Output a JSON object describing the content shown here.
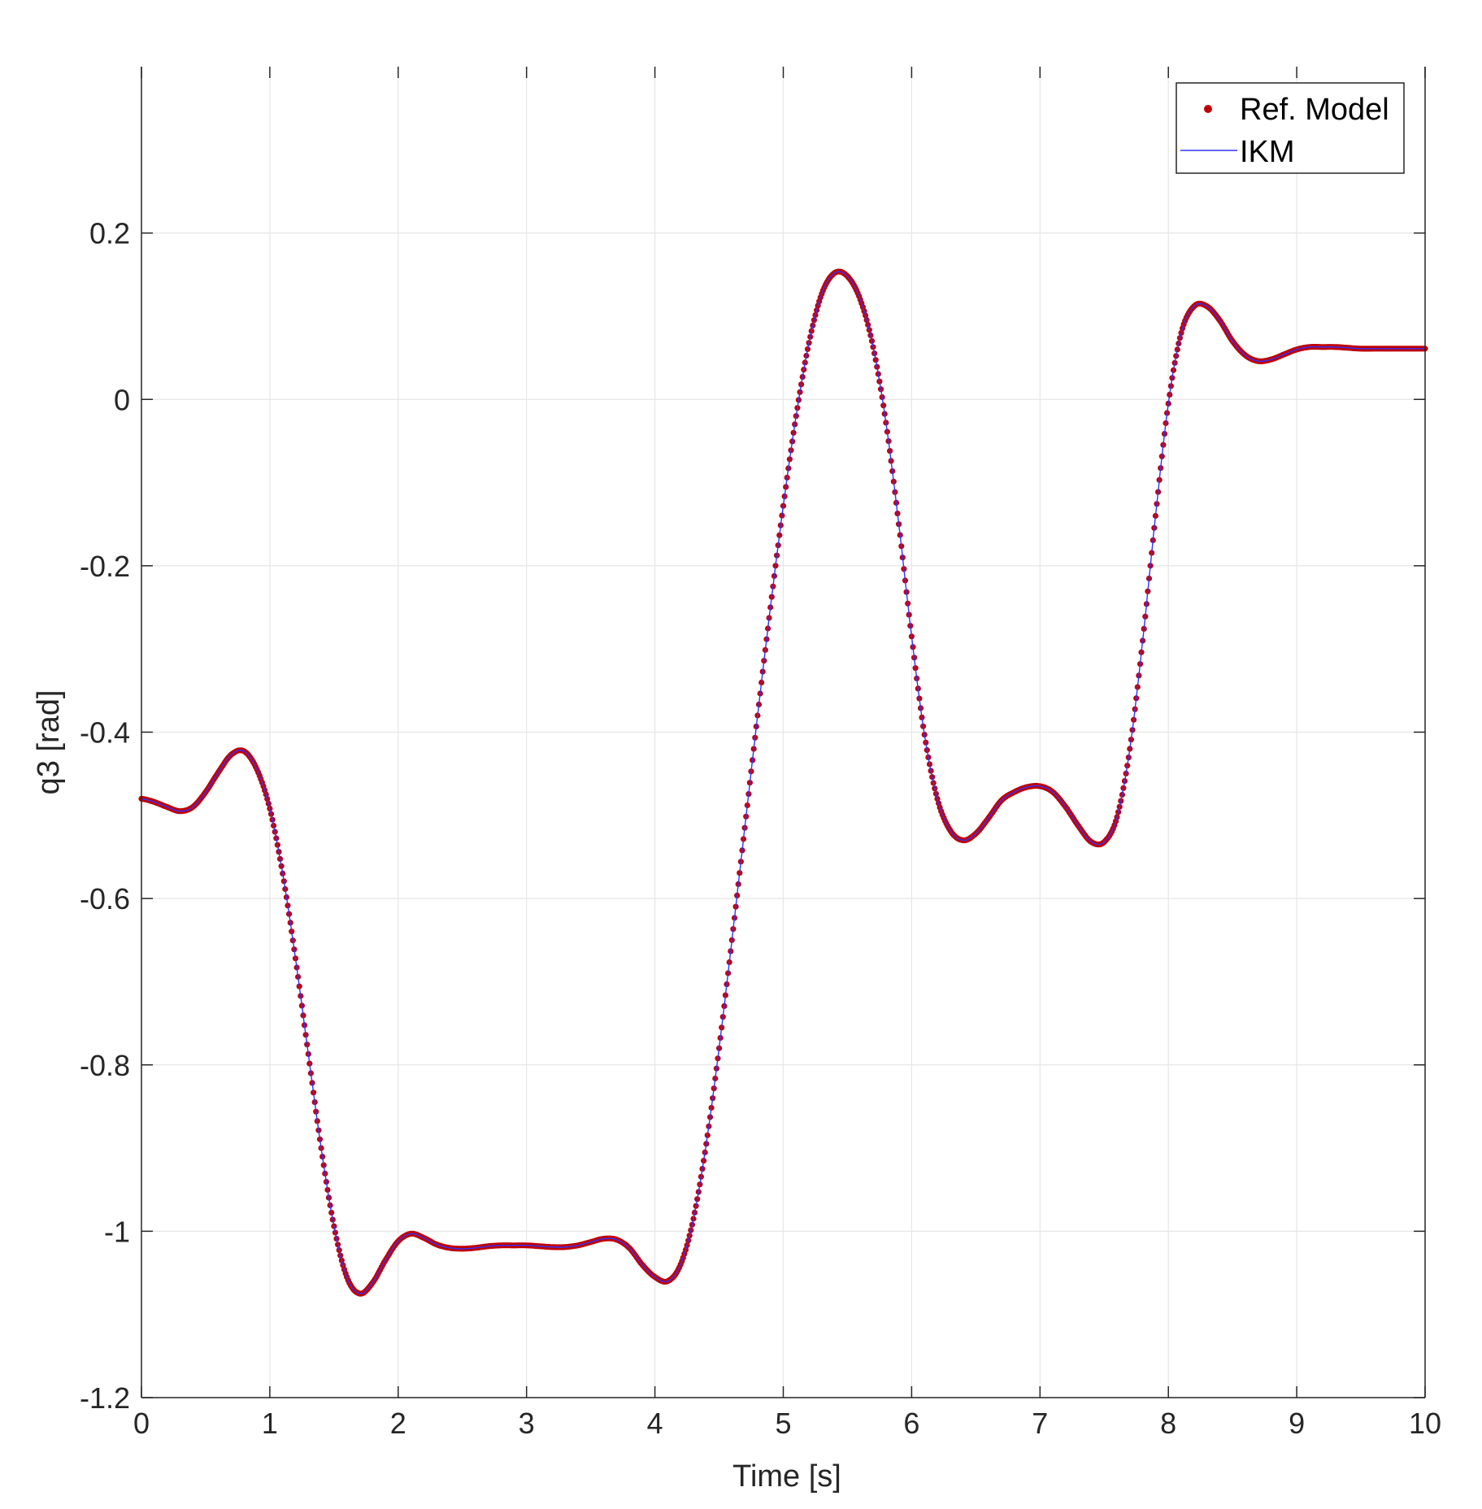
{
  "chart_data": {
    "type": "line",
    "title": "",
    "xlabel": "Time [s]",
    "ylabel": "q3 [rad]",
    "xlim": [
      0,
      10
    ],
    "ylim": [
      -1.2,
      0.4
    ],
    "xticks": [
      0,
      1,
      2,
      3,
      4,
      5,
      6,
      7,
      8,
      9,
      10
    ],
    "yticks": [
      -1.2,
      -1,
      -0.8,
      -0.6,
      -0.4,
      -0.2,
      0,
      0.2
    ],
    "xtick_labels": [
      "0",
      "1",
      "2",
      "3",
      "4",
      "5",
      "6",
      "7",
      "8",
      "9",
      "10"
    ],
    "ytick_labels": [
      "-1.2",
      "-1",
      "-0.8",
      "-0.6",
      "-0.4",
      "-0.2",
      "0",
      "0.2"
    ],
    "grid": true,
    "legend_position": "top-right",
    "series": [
      {
        "name": "Ref. Model",
        "style": "markers",
        "color": "#c00000"
      },
      {
        "name": "IKM",
        "style": "line",
        "color": "#3333ff"
      }
    ],
    "x": [
      0,
      0.1,
      0.2,
      0.3,
      0.4,
      0.5,
      0.6,
      0.7,
      0.8,
      0.9,
      1.0,
      1.1,
      1.2,
      1.3,
      1.4,
      1.5,
      1.6,
      1.7,
      1.8,
      1.9,
      2.0,
      2.1,
      2.2,
      2.3,
      2.4,
      2.5,
      2.6,
      2.7,
      2.8,
      2.9,
      3.0,
      3.1,
      3.2,
      3.3,
      3.4,
      3.5,
      3.6,
      3.7,
      3.8,
      3.9,
      4.0,
      4.1,
      4.2,
      4.3,
      4.4,
      4.5,
      4.6,
      4.7,
      4.8,
      4.9,
      5.0,
      5.1,
      5.2,
      5.3,
      5.4,
      5.5,
      5.6,
      5.7,
      5.8,
      5.9,
      6.0,
      6.1,
      6.2,
      6.3,
      6.4,
      6.5,
      6.6,
      6.7,
      6.8,
      6.9,
      7.0,
      7.1,
      7.2,
      7.3,
      7.4,
      7.5,
      7.6,
      7.7,
      7.8,
      7.9,
      8.0,
      8.1,
      8.2,
      8.3,
      8.4,
      8.5,
      8.6,
      8.7,
      8.8,
      8.9,
      9.0,
      9.1,
      9.2,
      9.3,
      9.4,
      9.5,
      9.6,
      9.7,
      9.8,
      9.9,
      10.0
    ],
    "y": [
      -0.48,
      -0.484,
      -0.49,
      -0.495,
      -0.49,
      -0.472,
      -0.448,
      -0.427,
      -0.423,
      -0.445,
      -0.492,
      -0.57,
      -0.672,
      -0.787,
      -0.9,
      -0.994,
      -1.055,
      -1.075,
      -1.062,
      -1.035,
      -1.012,
      -1.003,
      -1.008,
      -1.016,
      -1.02,
      -1.021,
      -1.02,
      -1.018,
      -1.017,
      -1.017,
      -1.017,
      -1.018,
      -1.019,
      -1.019,
      -1.017,
      -1.013,
      -1.009,
      -1.01,
      -1.02,
      -1.04,
      -1.055,
      -1.06,
      -1.04,
      -0.985,
      -0.895,
      -0.78,
      -0.65,
      -0.515,
      -0.38,
      -0.25,
      -0.128,
      -0.02,
      0.068,
      0.127,
      0.152,
      0.148,
      0.12,
      0.063,
      -0.028,
      -0.15,
      -0.285,
      -0.403,
      -0.48,
      -0.518,
      -0.53,
      -0.522,
      -0.503,
      -0.482,
      -0.472,
      -0.466,
      -0.465,
      -0.472,
      -0.49,
      -0.513,
      -0.532,
      -0.532,
      -0.502,
      -0.42,
      -0.29,
      -0.14,
      -0.005,
      0.08,
      0.112,
      0.112,
      0.095,
      0.07,
      0.053,
      0.046,
      0.048,
      0.054,
      0.06,
      0.063,
      0.063,
      0.063,
      0.062,
      0.061,
      0.061,
      0.061,
      0.061,
      0.061,
      0.061
    ]
  }
}
